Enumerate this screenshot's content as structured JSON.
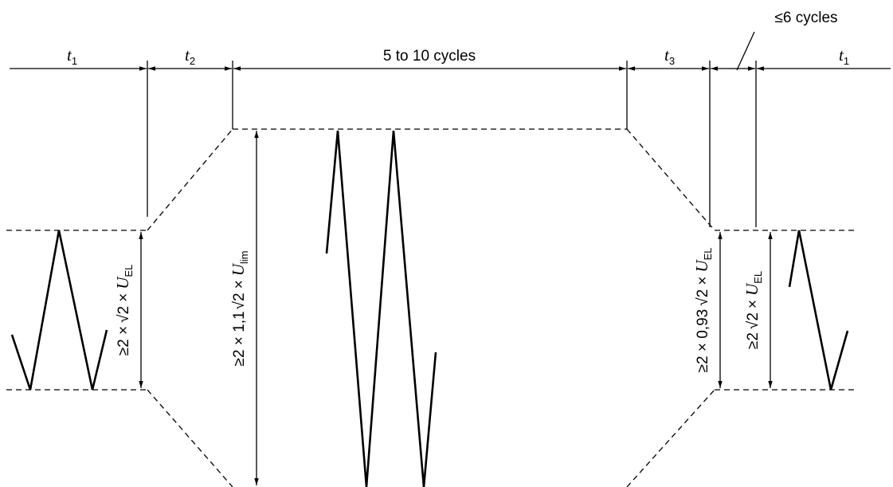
{
  "diagram": {
    "top_labels": {
      "t1_left": {
        "symbol": "t",
        "sub": "1"
      },
      "t2": {
        "symbol": "t",
        "sub": "2"
      },
      "middle": "5 to 10 cycles",
      "t3": {
        "symbol": "t",
        "sub": "3"
      },
      "short": "≤6 cycles",
      "t1_right": {
        "symbol": "t",
        "sub": "1"
      }
    },
    "amplitude_labels": {
      "left": {
        "prefix": "≥2 ×",
        "root": "2",
        "mult": "×",
        "var": "U",
        "sub": "EL"
      },
      "middle": {
        "prefix": "≥2 × 1,1",
        "root": "2",
        "mult": "×",
        "var": "U",
        "sub": "lim"
      },
      "right_1": {
        "prefix": "≥2 × 0,93",
        "root": "2",
        "mult": "×",
        "var": "U",
        "sub": "EL"
      },
      "right_2": {
        "prefix": "≥2",
        "root": "2",
        "mult": "×",
        "var": "U",
        "sub": "EL"
      }
    }
  }
}
